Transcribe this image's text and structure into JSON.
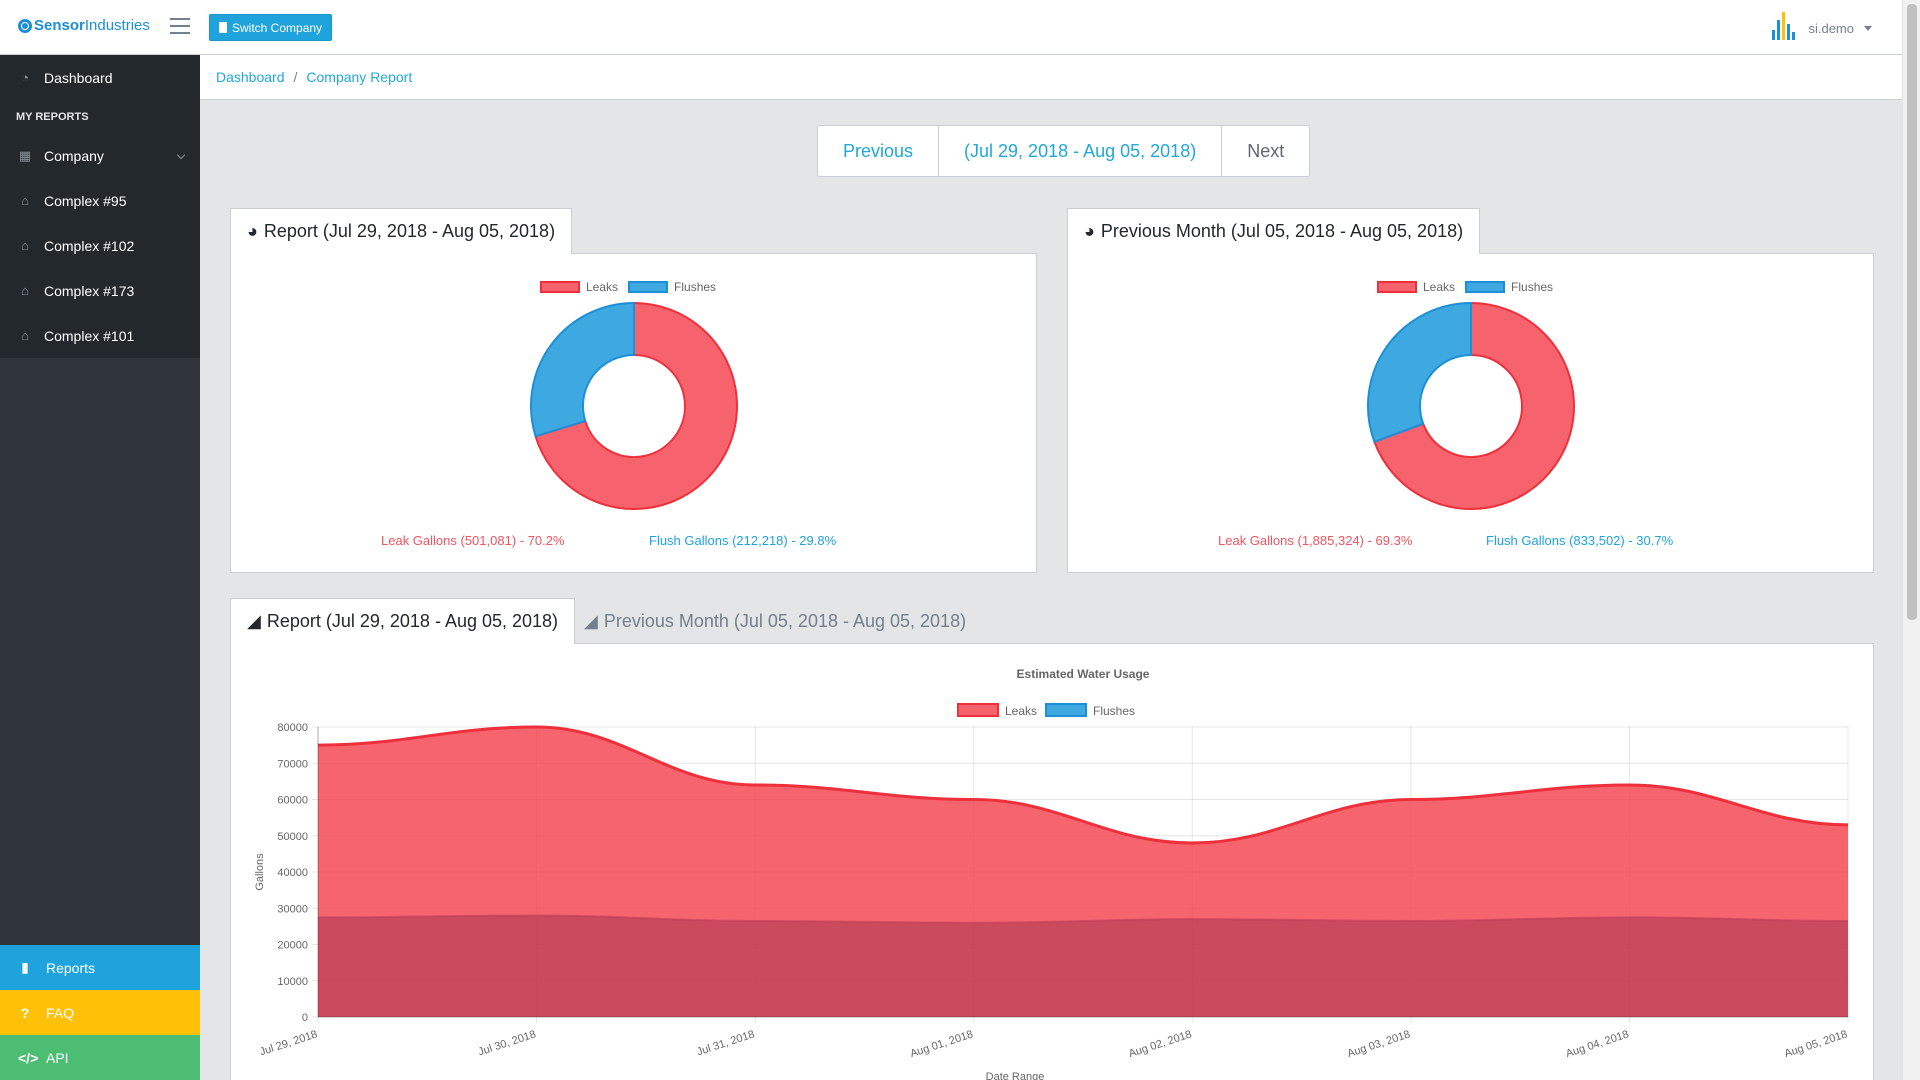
{
  "brand": {
    "name_a": "Sensor",
    "name_b": "Industries"
  },
  "header": {
    "switch_company_label": "Switch Company",
    "user_name": "si.demo"
  },
  "sidebar": {
    "dashboard": "Dashboard",
    "section_title": "MY REPORTS",
    "items": [
      "Company",
      "Complex #95",
      "Complex #102",
      "Complex #173",
      "Complex #101"
    ],
    "bottom": {
      "reports": "Reports",
      "faq": "FAQ",
      "api": "API"
    }
  },
  "breadcrumb": {
    "home": "Dashboard",
    "current": "Company Report"
  },
  "period_nav": {
    "previous": "Previous",
    "range": "(Jul 29, 2018 - Aug 05, 2018)",
    "next": "Next"
  },
  "colors": {
    "leak": "#f6636c",
    "leak_border": "#ee2f3c",
    "flush": "#3ea8e0",
    "flush_border": "#1d8fd6",
    "primary": "#20a8d8",
    "reports_bg": "#1fa3dc",
    "faq_bg": "#ffc107",
    "api_bg": "#4dbd74"
  },
  "donut_left": {
    "tab_label": "Report (Jul 29, 2018 - Aug 05, 2018)",
    "legend_leaks": "Leaks",
    "legend_flushes": "Flushes",
    "leak_text": "Leak Gallons (501,081) - 70.2%",
    "flush_text": "Flush Gallons (212,218) - 29.8%"
  },
  "donut_right": {
    "tab_label": "Previous Month (Jul 05, 2018 - Aug 05, 2018)",
    "legend_leaks": "Leaks",
    "legend_flushes": "Flushes",
    "leak_text": "Leak Gallons (1,885,324) - 69.3%",
    "flush_text": "Flush Gallons (833,502) - 30.7%"
  },
  "area_tabs": {
    "active": "Report (Jul 29, 2018 - Aug 05, 2018)",
    "inactive": "Previous Month (Jul 05, 2018 - Aug 05, 2018)"
  },
  "chart_data": [
    {
      "type": "pie",
      "variant": "doughnut",
      "title": "Report (Jul 29, 2018 - Aug 05, 2018)",
      "categories": [
        "Leaks",
        "Flushes"
      ],
      "values": [
        501081,
        212218
      ],
      "percent": [
        70.2,
        29.8
      ]
    },
    {
      "type": "pie",
      "variant": "doughnut",
      "title": "Previous Month (Jul 05, 2018 - Aug 05, 2018)",
      "categories": [
        "Leaks",
        "Flushes"
      ],
      "values": [
        1885324,
        833502
      ],
      "percent": [
        69.3,
        30.7
      ]
    },
    {
      "type": "area",
      "title": "Estimated Water Usage",
      "xlabel": "Date Range",
      "ylabel": "Gallons",
      "ylim": [
        0,
        80000
      ],
      "yticks": [
        0,
        10000,
        20000,
        30000,
        40000,
        50000,
        60000,
        70000,
        80000
      ],
      "categories": [
        "Jul 29, 2018",
        "Jul 30, 2018",
        "Jul 31, 2018",
        "Aug 01, 2018",
        "Aug 02, 2018",
        "Aug 03, 2018",
        "Aug 04, 2018",
        "Aug 05, 2018"
      ],
      "series": [
        {
          "name": "Leaks",
          "values": [
            75000,
            80000,
            64000,
            60000,
            48000,
            60000,
            64000,
            53000
          ]
        },
        {
          "name": "Flushes",
          "values": [
            27500,
            28000,
            26500,
            26000,
            27000,
            26500,
            27500,
            26500
          ]
        }
      ],
      "legend": "top"
    }
  ]
}
